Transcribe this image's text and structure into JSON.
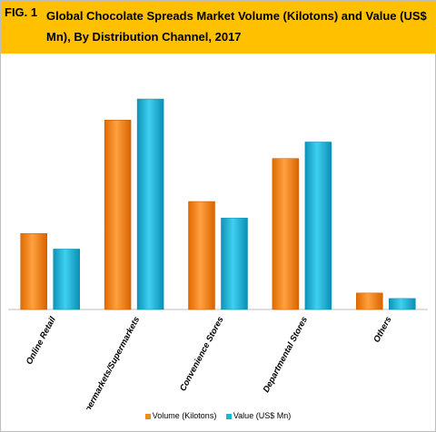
{
  "header": {
    "fig_label": "FIG. 1",
    "title": "Global Chocolate Spreads Market Volume (Kilotons) and Value (US$ Mn), By Distribution Channel, 2017"
  },
  "colors": {
    "header_bg": "#ffc000",
    "volume": "#f38a1c",
    "value": "#1ab6d8"
  },
  "chart_data": {
    "type": "bar",
    "title": "Global Chocolate Spreads Market Volume (Kilotons) and Value (US$ Mn), By Distribution Channel, 2017",
    "categories": [
      "Online Retail",
      "Hypermarkets/Supermarkets",
      "Convenience Stores",
      "Departmental Stores",
      "Others"
    ],
    "series": [
      {
        "name": "Volume (Kilotons)",
        "color": "#f38a1c",
        "values": [
          83,
          207,
          118,
          165,
          18
        ]
      },
      {
        "name": "Value (US$ Mn)",
        "color": "#1ab6d8",
        "values": [
          66,
          230,
          100,
          183,
          12
        ]
      }
    ],
    "ylim": [
      0,
      240
    ],
    "grid": false,
    "legend": "bottom-center"
  }
}
